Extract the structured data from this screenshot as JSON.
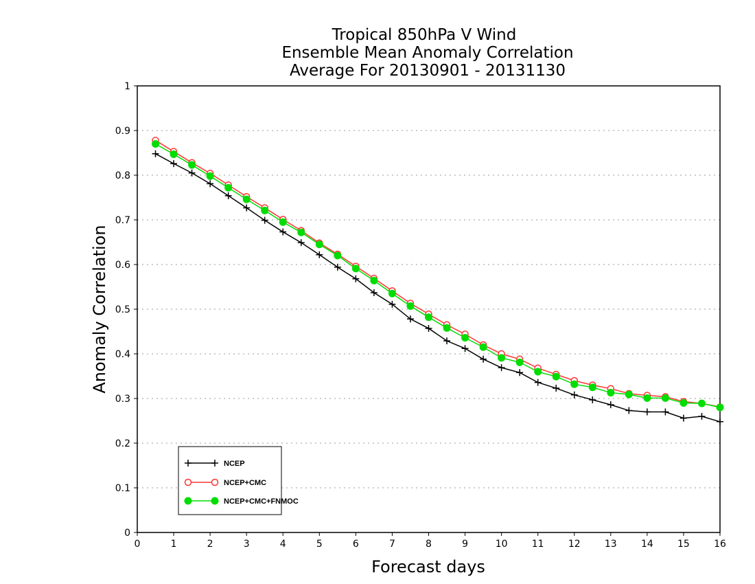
{
  "chart_data": {
    "type": "line",
    "title_lines": [
      "Tropical 850hPa V Wind",
      "Ensemble Mean Anomaly Correlation",
      "Average For 20130901 - 20131130"
    ],
    "xlabel": "Forecast days",
    "ylabel": "Anomaly Correlation",
    "xlim": [
      0,
      16
    ],
    "ylim": [
      0,
      1
    ],
    "x_ticks": [
      "0",
      "1",
      "2",
      "3",
      "4",
      "5",
      "6",
      "7",
      "8",
      "9",
      "10",
      "11",
      "12",
      "13",
      "14",
      "15",
      "16"
    ],
    "y_ticks": [
      "0",
      "0.1",
      "0.2",
      "0.3",
      "0.4",
      "0.5",
      "0.6",
      "0.7",
      "0.8",
      "0.9",
      "1"
    ],
    "grid": "horizontal dotted",
    "legend_position": "bottom-left",
    "x": [
      0.5,
      1,
      1.5,
      2,
      2.5,
      3,
      3.5,
      4,
      4.5,
      5,
      5.5,
      6,
      6.5,
      7,
      7.5,
      8,
      8.5,
      9,
      9.5,
      10,
      10.5,
      11,
      11.5,
      12,
      12.5,
      13,
      13.5,
      14,
      14.5,
      15,
      15.5,
      16
    ],
    "series": [
      {
        "name": "NCEP",
        "color": "#000000",
        "marker": "plus",
        "values": [
          0.848,
          0.826,
          0.805,
          0.781,
          0.754,
          0.727,
          0.699,
          0.673,
          0.649,
          0.622,
          0.594,
          0.568,
          0.537,
          0.511,
          0.478,
          0.457,
          0.429,
          0.412,
          0.388,
          0.369,
          0.358,
          0.336,
          0.323,
          0.308,
          0.297,
          0.286,
          0.273,
          0.27,
          0.27,
          0.256,
          0.26,
          0.248
        ]
      },
      {
        "name": "NCEP+CMC",
        "color": "#ff3333",
        "marker": "open-circle",
        "values": [
          0.878,
          0.853,
          0.828,
          0.804,
          0.778,
          0.752,
          0.727,
          0.701,
          0.676,
          0.648,
          0.623,
          0.596,
          0.569,
          0.541,
          0.513,
          0.489,
          0.465,
          0.444,
          0.42,
          0.4,
          0.388,
          0.368,
          0.354,
          0.34,
          0.33,
          0.322,
          0.311,
          0.307,
          0.304,
          0.293,
          0.289,
          0.281
        ]
      },
      {
        "name": "NCEP+CMC+FNMOC",
        "color": "#00dd00",
        "marker": "filled-circle",
        "values": [
          0.87,
          0.847,
          0.823,
          0.798,
          0.772,
          0.746,
          0.721,
          0.695,
          0.672,
          0.645,
          0.62,
          0.591,
          0.564,
          0.535,
          0.507,
          0.482,
          0.458,
          0.436,
          0.415,
          0.391,
          0.381,
          0.36,
          0.349,
          0.332,
          0.325,
          0.313,
          0.309,
          0.301,
          0.301,
          0.29,
          0.289,
          0.28
        ]
      }
    ]
  }
}
